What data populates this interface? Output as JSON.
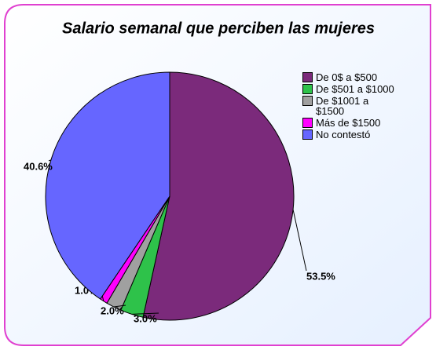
{
  "chart_data": {
    "type": "pie",
    "title": "Salario semanal que perciben las mujeres",
    "categories": [
      "De 0$ a $500",
      "De $501 a $1000",
      "De $1001 a $1500",
      "Más de $1500",
      "No contestó"
    ],
    "values": [
      53.5,
      3.0,
      2.0,
      1.0,
      40.6
    ],
    "value_labels": [
      "53.5%",
      "3.0%",
      "2.0%",
      "1.0%",
      "40.6%"
    ],
    "colors": [
      "#7b2a7b",
      "#2ec24a",
      "#a0a0a0",
      "#ff00ff",
      "#6666ff"
    ],
    "legend": "right"
  }
}
